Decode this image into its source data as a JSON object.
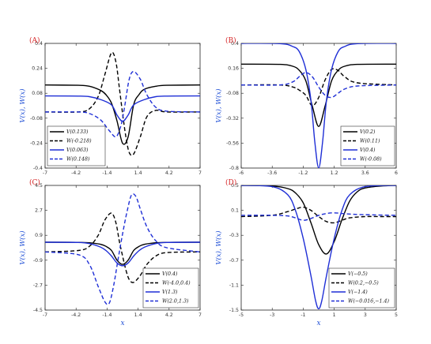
{
  "chart_data": [
    {
      "type": "line",
      "panel": "(A)",
      "xlim": [
        -7,
        7
      ],
      "ylim": [
        -0.4,
        0.4
      ],
      "xticks": [
        "-7",
        "-4.2",
        "-1.4",
        "1.4",
        "4.2",
        "7"
      ],
      "yticks": [
        "-0.4",
        "-0.24",
        "-0.08",
        "0.08",
        "0.24",
        "0.4"
      ],
      "ylabel": "V(x), W(x)",
      "xlabel": "",
      "legend": "bottom-left",
      "series": [
        {
          "name": "V(0.133)",
          "color": "#000000",
          "dash": false,
          "x": [
            -7,
            -4,
            -3,
            -2,
            -1.5,
            -1,
            -0.5,
            0,
            0.5,
            1,
            1.5,
            2,
            3,
            4,
            7
          ],
          "y": [
            0.133,
            0.131,
            0.125,
            0.099,
            0.071,
            0.016,
            -0.098,
            -0.241,
            -0.2,
            0.006,
            0.073,
            0.107,
            0.125,
            0.131,
            0.133
          ]
        },
        {
          "name": "W(-0.218)",
          "color": "#000000",
          "dash": true,
          "x": [
            -7,
            -4,
            -3,
            -2.2,
            -1.6,
            -1,
            -0.6,
            -0.3,
            0,
            0.3,
            0.6,
            1,
            1.6,
            2.2,
            3,
            4,
            7
          ],
          "y": [
            -0.04,
            -0.04,
            -0.02,
            0.06,
            0.2,
            0.34,
            0.28,
            0.12,
            -0.05,
            -0.2,
            -0.3,
            -0.31,
            -0.2,
            -0.07,
            -0.03,
            -0.04,
            -0.04
          ]
        },
        {
          "name": "V(0.063)",
          "color": "#1f2fd6",
          "dash": false,
          "x": [
            -7,
            -4,
            -3,
            -2,
            -1,
            -0.5,
            0,
            0.5,
            1,
            2,
            3,
            4,
            7
          ],
          "y": [
            0.063,
            0.062,
            0.058,
            0.04,
            0.005,
            -0.06,
            -0.1,
            -0.06,
            0.005,
            0.04,
            0.058,
            0.062,
            0.063
          ]
        },
        {
          "name": "W(0.148)",
          "color": "#1f2fd6",
          "dash": true,
          "x": [
            -7,
            -4,
            -3,
            -2,
            -1.2,
            -0.6,
            -0.2,
            0,
            0.2,
            0.6,
            1,
            1.6,
            2.2,
            3,
            4,
            7
          ],
          "y": [
            -0.04,
            -0.04,
            -0.05,
            -0.09,
            -0.16,
            -0.2,
            -0.14,
            -0.08,
            0.0,
            0.17,
            0.22,
            0.17,
            0.07,
            -0.01,
            -0.035,
            -0.04
          ]
        }
      ]
    },
    {
      "type": "line",
      "panel": "(B)",
      "xlim": [
        -6,
        6
      ],
      "ylim": [
        -0.8,
        0.4
      ],
      "xticks": [
        "-6",
        "-3.6",
        "-1.2",
        "1.2",
        "3.6",
        "6"
      ],
      "yticks": [
        "-0.8",
        "-0.56",
        "-0.32",
        "-0.08",
        "0.16",
        "0.4"
      ],
      "ylabel": "V(x), W(x)",
      "xlabel": "",
      "legend": "bottom-right",
      "series": [
        {
          "name": "V(0.2)",
          "color": "#000000",
          "dash": false,
          "x": [
            -6,
            -3,
            -2,
            -1.5,
            -1,
            -0.5,
            0,
            0.5,
            1,
            1.5,
            2,
            3,
            6
          ],
          "y": [
            0.2,
            0.198,
            0.18,
            0.14,
            0.04,
            -0.2,
            -0.4,
            -0.2,
            0.04,
            0.14,
            0.18,
            0.198,
            0.2
          ]
        },
        {
          "name": "W(0.11)",
          "color": "#000000",
          "dash": true,
          "x": [
            -6,
            -3,
            -2,
            -1.5,
            -1,
            -0.5,
            0,
            0.5,
            1,
            1.5,
            2,
            3,
            6
          ],
          "y": [
            0.0,
            0.0,
            -0.02,
            -0.05,
            -0.1,
            -0.2,
            -0.12,
            0.05,
            0.15,
            0.14,
            0.08,
            0.02,
            0.0
          ]
        },
        {
          "name": "V(0.4)",
          "color": "#1f2fd6",
          "dash": false,
          "x": [
            -6,
            -3,
            -2,
            -1.5,
            -1,
            -0.6,
            -0.3,
            0,
            0.3,
            0.6,
            1,
            1.5,
            2,
            3,
            6
          ],
          "y": [
            0.4,
            0.398,
            0.37,
            0.32,
            0.15,
            -0.15,
            -0.55,
            -0.8,
            -0.55,
            -0.15,
            0.15,
            0.32,
            0.37,
            0.398,
            0.4
          ]
        },
        {
          "name": "W(-0.08)",
          "color": "#1f2fd6",
          "dash": true,
          "x": [
            -6,
            -3,
            -2,
            -1.5,
            -1,
            -0.5,
            0,
            0.5,
            1,
            1.5,
            2,
            3,
            6
          ],
          "y": [
            0.0,
            0.0,
            0.03,
            0.08,
            0.12,
            0.08,
            -0.02,
            -0.1,
            -0.12,
            -0.08,
            -0.04,
            -0.01,
            0.0
          ]
        }
      ]
    },
    {
      "type": "line",
      "panel": "(C)",
      "xlim": [
        -7,
        7
      ],
      "ylim": [
        -4.5,
        4.5
      ],
      "xticks": [
        "-7",
        "-4.2",
        "-1.4",
        "1.4",
        "4.2",
        "7"
      ],
      "yticks": [
        "-4.5",
        "-2.7",
        "-0.9",
        "0.9",
        "2.7",
        "4.5"
      ],
      "ylabel": "V(x), W(x)",
      "xlabel": "x",
      "legend": "bottom-right",
      "series": [
        {
          "name": "V(0.4)",
          "color": "#000000",
          "dash": false,
          "x": [
            -7,
            -4,
            -3,
            -2,
            -1.5,
            -1,
            -0.5,
            0,
            0.5,
            1,
            1.5,
            2,
            3,
            4,
            7
          ],
          "y": [
            0.4,
            0.39,
            0.36,
            0.25,
            0.1,
            -0.2,
            -0.9,
            -1.2,
            -0.9,
            -0.2,
            0.1,
            0.25,
            0.36,
            0.39,
            0.4
          ]
        },
        {
          "name": "W(-4.0,0.4)",
          "color": "#000000",
          "dash": true,
          "x": [
            -7,
            -4,
            -3,
            -2.2,
            -1.6,
            -1,
            -0.6,
            -0.3,
            0,
            0.3,
            0.6,
            1,
            1.6,
            2.2,
            3,
            4,
            7
          ],
          "y": [
            -0.3,
            -0.2,
            0.1,
            0.9,
            2.0,
            2.5,
            1.8,
            0.5,
            -0.6,
            -1.6,
            -2.3,
            -2.5,
            -2.0,
            -1.2,
            -0.6,
            -0.35,
            -0.3
          ]
        },
        {
          "name": "V(1.3)",
          "color": "#1f2fd6",
          "dash": false,
          "x": [
            -7,
            -4,
            -3,
            -2,
            -1.5,
            -1,
            -0.5,
            0,
            0.5,
            1,
            1.5,
            2,
            3,
            4,
            7
          ],
          "y": [
            0.4,
            0.38,
            0.3,
            0.05,
            -0.2,
            -0.6,
            -1.1,
            -1.3,
            -1.1,
            -0.6,
            -0.2,
            0.05,
            0.3,
            0.38,
            0.4
          ]
        },
        {
          "name": "W(2.0,1.3)",
          "color": "#1f2fd6",
          "dash": true,
          "x": [
            -7,
            -4,
            -3,
            -2.2,
            -1.6,
            -1.2,
            -0.8,
            -0.4,
            0,
            0.4,
            0.8,
            1.2,
            1.6,
            2.2,
            3,
            4,
            7
          ],
          "y": [
            -0.3,
            -0.5,
            -1.2,
            -2.8,
            -3.9,
            -4.0,
            -2.7,
            -0.8,
            1.0,
            2.6,
            3.8,
            3.7,
            2.8,
            1.5,
            0.5,
            0.0,
            -0.3
          ]
        }
      ]
    },
    {
      "type": "line",
      "panel": "(D)",
      "xlim": [
        -5,
        5
      ],
      "ylim": [
        -1.5,
        0.5
      ],
      "xticks": [
        "-5",
        "-3",
        "-1",
        "1",
        "3",
        "5"
      ],
      "yticks": [
        "-1.5",
        "-1.1",
        "-0.7",
        "-0.3",
        "0.1",
        "0.5"
      ],
      "ylabel": "V(x), W(x)",
      "xlabel": "x",
      "legend": "bottom-right",
      "series": [
        {
          "name": "V(−0.5)",
          "color": "#000000",
          "dash": false,
          "x": [
            -5,
            -3,
            -2,
            -1.5,
            -1,
            -0.5,
            0,
            0.5,
            1,
            1.5,
            2,
            2.5,
            3,
            4,
            5
          ],
          "y": [
            0.5,
            0.49,
            0.45,
            0.38,
            0.22,
            -0.1,
            -0.45,
            -0.6,
            -0.4,
            -0.05,
            0.25,
            0.4,
            0.46,
            0.49,
            0.5
          ]
        },
        {
          "name": "W(0.2,−0.5)",
          "color": "#000000",
          "dash": true,
          "x": [
            -5,
            -3,
            -2,
            -1.5,
            -1,
            -0.5,
            0,
            0.5,
            1,
            1.5,
            2,
            3,
            4,
            5
          ],
          "y": [
            0.0,
            0.02,
            0.08,
            0.12,
            0.15,
            0.1,
            0.0,
            -0.08,
            -0.1,
            -0.06,
            -0.02,
            0.0,
            0.0,
            0.0
          ]
        },
        {
          "name": "V(−1.4)",
          "color": "#1f2fd6",
          "dash": false,
          "x": [
            -5,
            -3,
            -2,
            -1.5,
            -1,
            -0.5,
            -0.2,
            0,
            0.2,
            0.5,
            1,
            1.5,
            2,
            3,
            5
          ],
          "y": [
            0.5,
            0.48,
            0.35,
            0.1,
            -0.35,
            -0.95,
            -1.35,
            -1.48,
            -1.35,
            -0.95,
            -0.35,
            0.1,
            0.35,
            0.48,
            0.5
          ]
        },
        {
          "name": "W(−0.016,−1.4)",
          "color": "#1f2fd6",
          "dash": true,
          "x": [
            -5,
            -3,
            -2,
            -1.5,
            -1,
            -0.5,
            0,
            0.5,
            1,
            1.5,
            2,
            3,
            5
          ],
          "y": [
            0.02,
            0.02,
            0.01,
            -0.02,
            -0.06,
            -0.03,
            0.02,
            0.05,
            0.06,
            0.05,
            0.04,
            0.03,
            0.02
          ]
        }
      ]
    }
  ]
}
